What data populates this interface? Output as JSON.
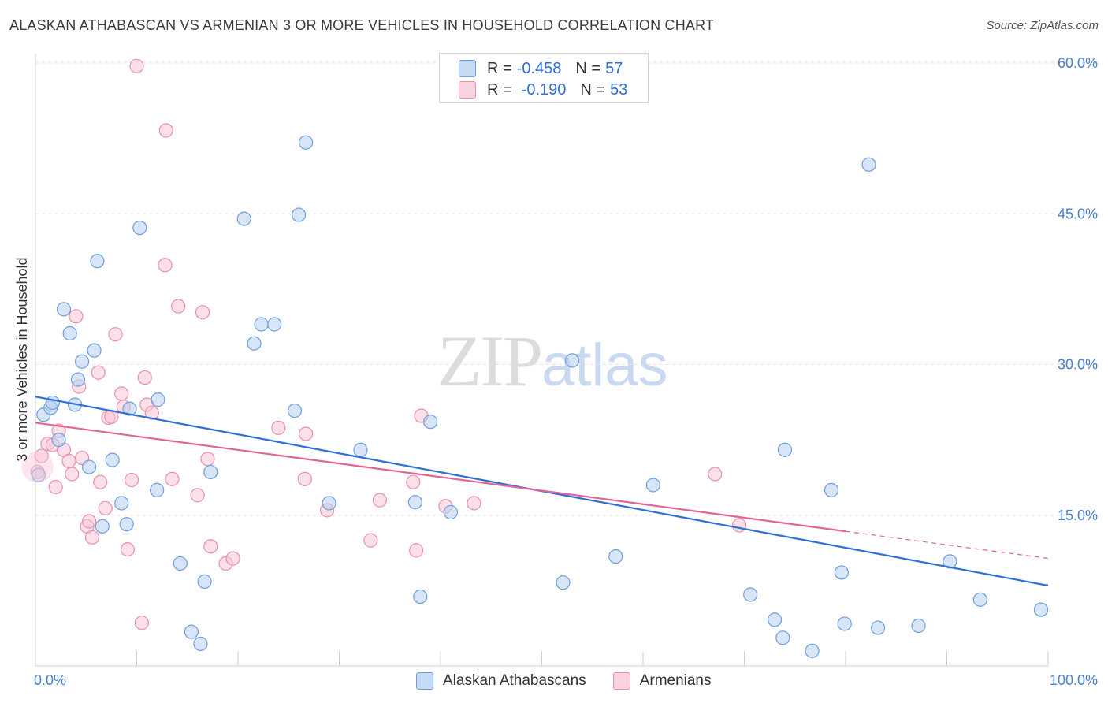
{
  "header": {
    "title": "ALASKAN ATHABASCAN VS ARMENIAN 3 OR MORE VEHICLES IN HOUSEHOLD CORRELATION CHART",
    "source": "Source: ZipAtlas.com"
  },
  "watermark": {
    "zip": "ZIP",
    "atlas": "atlas"
  },
  "legend_top": [
    {
      "r_label": "R =",
      "r_value": "-0.458",
      "n_label": "N =",
      "n_value": "57"
    },
    {
      "r_label": "R =",
      "r_value": "-0.190",
      "n_label": "N =",
      "n_value": "53"
    }
  ],
  "legend_bottom": [
    "Alaskan Athabascans",
    "Armenians"
  ],
  "colors": {
    "blue_fill": "#b8d0f0",
    "blue_stroke": "#6c9ee0",
    "blue_line": "#2f6fd6",
    "pink_fill": "#f8c6d6",
    "pink_stroke": "#e98fae",
    "pink_line": "#e0669a",
    "tick_label": "#4a7fd0",
    "grid": "#e3e3e3"
  },
  "chart_data": {
    "type": "scatter",
    "title": "ALASKAN ATHABASCAN VS ARMENIAN 3 OR MORE VEHICLES IN HOUSEHOLD CORRELATION CHART",
    "xlabel": "",
    "ylabel": "3 or more Vehicles in Household",
    "xlim": [
      0,
      100
    ],
    "ylim": [
      0,
      63
    ],
    "x_tick_labels": [
      {
        "v": 0,
        "label": "0.0%"
      },
      {
        "v": 100,
        "label": "100.0%"
      }
    ],
    "y_tick_labels": [
      {
        "v": 15,
        "label": "15.0%"
      },
      {
        "v": 30,
        "label": "30.0%"
      },
      {
        "v": 45,
        "label": "45.0%"
      },
      {
        "v": 60,
        "label": "60.0%"
      }
    ],
    "x_minor_ticks": [
      0,
      10,
      20,
      30,
      40,
      50,
      60,
      70,
      80,
      90,
      100
    ],
    "grid": true,
    "legend_position": "top-center",
    "series": [
      {
        "name": "Alaskan Athabascans",
        "r": -0.458,
        "n": 57,
        "trend": {
          "x": [
            0,
            100
          ],
          "y": [
            26.8,
            8.0
          ],
          "dashed_from": null
        },
        "points": [
          [
            0.3,
            19.0
          ],
          [
            0.8,
            25.0
          ],
          [
            1.5,
            25.7
          ],
          [
            1.7,
            26.2
          ],
          [
            2.3,
            22.5
          ],
          [
            2.8,
            35.5
          ],
          [
            3.4,
            33.1
          ],
          [
            3.9,
            26.0
          ],
          [
            4.2,
            28.5
          ],
          [
            4.6,
            30.3
          ],
          [
            5.3,
            19.8
          ],
          [
            5.8,
            31.4
          ],
          [
            6.1,
            40.3
          ],
          [
            6.6,
            13.9
          ],
          [
            7.6,
            20.5
          ],
          [
            8.5,
            16.2
          ],
          [
            9.0,
            14.1
          ],
          [
            9.3,
            25.6
          ],
          [
            10.3,
            43.6
          ],
          [
            12.0,
            17.5
          ],
          [
            12.1,
            26.5
          ],
          [
            14.3,
            10.2
          ],
          [
            15.4,
            3.4
          ],
          [
            16.3,
            2.2
          ],
          [
            16.7,
            8.4
          ],
          [
            17.3,
            19.3
          ],
          [
            20.6,
            44.5
          ],
          [
            21.6,
            32.1
          ],
          [
            22.3,
            34.0
          ],
          [
            23.6,
            34.0
          ],
          [
            26.0,
            44.9
          ],
          [
            25.6,
            25.4
          ],
          [
            26.7,
            52.1
          ],
          [
            29.0,
            16.2
          ],
          [
            32.1,
            21.5
          ],
          [
            37.5,
            16.3
          ],
          [
            38.0,
            6.9
          ],
          [
            39.0,
            24.3
          ],
          [
            41.0,
            15.3
          ],
          [
            52.1,
            8.3
          ],
          [
            53.0,
            30.4
          ],
          [
            57.3,
            10.9
          ],
          [
            61.0,
            18.0
          ],
          [
            70.6,
            7.1
          ],
          [
            73.0,
            4.6
          ],
          [
            74.0,
            21.5
          ],
          [
            73.8,
            2.8
          ],
          [
            76.7,
            1.5
          ],
          [
            78.6,
            17.5
          ],
          [
            79.6,
            9.3
          ],
          [
            79.9,
            4.2
          ],
          [
            82.3,
            49.9
          ],
          [
            83.2,
            3.8
          ],
          [
            87.2,
            4.0
          ],
          [
            90.3,
            10.4
          ],
          [
            93.3,
            6.6
          ],
          [
            99.3,
            5.6
          ]
        ]
      },
      {
        "name": "Armenians",
        "r": -0.19,
        "n": 53,
        "trend": {
          "x": [
            0,
            100
          ],
          "y": [
            24.2,
            10.7
          ],
          "dashed_from": 80
        },
        "points": [
          [
            0.2,
            19.3
          ],
          [
            0.6,
            20.9
          ],
          [
            1.2,
            22.1
          ],
          [
            1.7,
            22.0
          ],
          [
            2.0,
            17.8
          ],
          [
            2.3,
            23.4
          ],
          [
            2.8,
            21.5
          ],
          [
            3.3,
            20.4
          ],
          [
            3.6,
            19.1
          ],
          [
            4.0,
            34.8
          ],
          [
            4.3,
            27.8
          ],
          [
            4.6,
            20.7
          ],
          [
            5.1,
            13.9
          ],
          [
            5.3,
            14.4
          ],
          [
            5.6,
            12.8
          ],
          [
            6.2,
            29.2
          ],
          [
            6.4,
            18.3
          ],
          [
            6.9,
            15.7
          ],
          [
            7.2,
            24.7
          ],
          [
            7.5,
            24.8
          ],
          [
            7.9,
            33.0
          ],
          [
            8.5,
            27.1
          ],
          [
            8.7,
            25.8
          ],
          [
            9.1,
            11.6
          ],
          [
            9.5,
            18.5
          ],
          [
            10.0,
            59.7
          ],
          [
            10.5,
            4.3
          ],
          [
            10.8,
            28.7
          ],
          [
            11.0,
            26.0
          ],
          [
            11.5,
            25.2
          ],
          [
            12.8,
            39.9
          ],
          [
            12.9,
            53.3
          ],
          [
            13.5,
            18.6
          ],
          [
            14.1,
            35.8
          ],
          [
            16.0,
            17.0
          ],
          [
            16.5,
            35.2
          ],
          [
            17.0,
            20.6
          ],
          [
            17.3,
            11.9
          ],
          [
            18.8,
            10.2
          ],
          [
            19.5,
            10.7
          ],
          [
            24.0,
            23.7
          ],
          [
            26.7,
            23.1
          ],
          [
            26.6,
            18.6
          ],
          [
            28.8,
            15.5
          ],
          [
            33.1,
            12.5
          ],
          [
            34.0,
            16.5
          ],
          [
            37.3,
            18.3
          ],
          [
            37.6,
            11.5
          ],
          [
            38.1,
            24.9
          ],
          [
            40.5,
            15.9
          ],
          [
            43.3,
            16.2
          ],
          [
            67.1,
            19.1
          ],
          [
            69.5,
            14.0
          ]
        ]
      }
    ]
  }
}
